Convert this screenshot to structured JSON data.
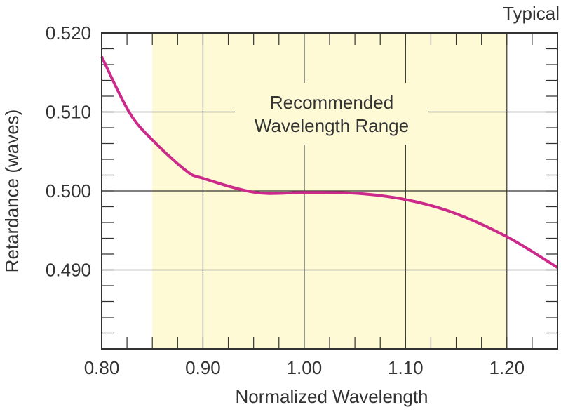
{
  "chart_data": {
    "type": "line",
    "title": "",
    "corner_note": "Typical",
    "xlabel": "Normalized Wavelength",
    "ylabel": "Retardance (waves)",
    "xlim": [
      0.8,
      1.25
    ],
    "ylim": [
      0.48,
      0.52
    ],
    "x_ticks": [
      "0.80",
      "0.90",
      "1.00",
      "1.10",
      "1.20"
    ],
    "x_tick_values": [
      0.8,
      0.9,
      1.0,
      1.1,
      1.2
    ],
    "y_ticks": [
      "0.520",
      "0.510",
      "0.500",
      "0.490"
    ],
    "y_tick_values": [
      0.52,
      0.51,
      0.5,
      0.49
    ],
    "grid": true,
    "shaded_region": {
      "x_range": [
        0.85,
        1.2
      ],
      "label_line1": "Recommended",
      "label_line2": "Wavelength Range",
      "color": "#fefad6"
    },
    "series": [
      {
        "color": "#cc2a8a",
        "x": [
          0.8,
          0.8275,
          0.852,
          0.884,
          0.9,
          0.952,
          1.0,
          1.051,
          1.1,
          1.146,
          1.2,
          1.25
        ],
        "y": [
          0.517,
          0.5099,
          0.5062,
          0.5025,
          0.5016,
          0.4998,
          0.4998,
          0.4997,
          0.4989,
          0.4973,
          0.4942,
          0.4903
        ]
      }
    ]
  }
}
